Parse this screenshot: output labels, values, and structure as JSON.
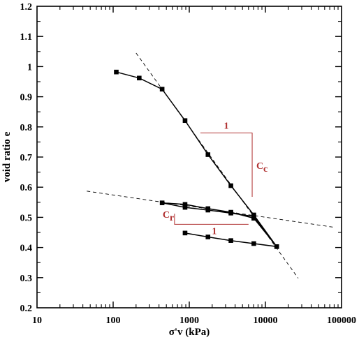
{
  "chart_data": {
    "type": "line",
    "title": "",
    "xlabel": "σ'v (kPa)",
    "ylabel": "void ratio e",
    "xscale": "log",
    "xlim": [
      10,
      100000
    ],
    "ylim": [
      0.2,
      1.2
    ],
    "x_ticks": [
      10,
      100,
      1000,
      10000,
      100000
    ],
    "x_tick_labels": [
      "10",
      "100",
      "1000",
      "10000",
      "100000"
    ],
    "y_ticks": [
      0.2,
      0.3,
      0.4,
      0.5,
      0.6,
      0.7,
      0.8,
      0.9,
      1.0,
      1.1,
      1.2
    ],
    "y_tick_labels": [
      "0.2",
      "0.3",
      "0.4",
      "0.5",
      "0.6",
      "0.7",
      "0.8",
      "0.9",
      "1",
      "1.1",
      "1.2"
    ],
    "grid": false,
    "series": [
      {
        "x": [
          110,
          220,
          440,
          880,
          1760,
          3520,
          7040,
          14080,
          7040,
          3520,
          1760,
          880,
          440,
          880,
          1760,
          3520,
          7040,
          14080,
          7040,
          3520,
          1760,
          880
        ],
        "y": [
          0.982,
          0.962,
          0.925,
          0.821,
          0.708,
          0.605,
          0.508,
          0.403,
          0.497,
          0.517,
          0.529,
          0.543,
          0.548,
          0.533,
          0.524,
          0.514,
          0.503,
          0.403,
          0.413,
          0.423,
          0.435,
          0.448
        ],
        "marker": "square",
        "color": "#000000"
      }
    ],
    "reference_lines": [
      {
        "style": "dashed",
        "color": "#000000",
        "x": [
          200,
          27000
        ],
        "y": [
          1.045,
          0.298
        ]
      },
      {
        "style": "dashed",
        "color": "#000000",
        "x": [
          45,
          80000
        ],
        "y": [
          0.587,
          0.467
        ]
      }
    ],
    "annotations": {
      "cc_triangle_label": "1",
      "cc_label": "C",
      "cc_sub": "c",
      "cr_triangle_label": "1",
      "cr_label": "C",
      "cr_sub": "r",
      "color": "#b03030"
    }
  }
}
